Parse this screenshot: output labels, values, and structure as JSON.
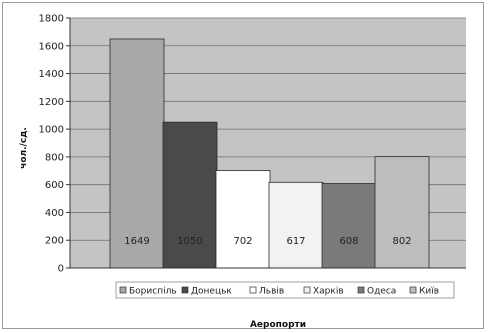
{
  "chart_data": {
    "type": "bar",
    "title": "",
    "xlabel": "Аеропорти",
    "ylabel": "чол./сд.",
    "ylim": [
      0,
      1800
    ],
    "yticks": [
      0,
      200,
      400,
      600,
      800,
      1000,
      1200,
      1400,
      1600,
      1800
    ],
    "grid": true,
    "legend_position": "bottom",
    "categories": [
      "Бориспіль",
      "Донецьк",
      "Львів",
      "Харків",
      "Одеса",
      "Київ"
    ],
    "values": [
      1649,
      1050,
      702,
      617,
      608,
      802
    ],
    "data_labels": [
      "1649",
      "1050",
      "702",
      "617",
      "608",
      "802"
    ],
    "colors": [
      "#a8a8a8",
      "#4a4a4a",
      "#ffffff",
      "#f2f2f2",
      "#7a7a7a",
      "#bdbdbd"
    ],
    "plot_background": "#c4c4c4"
  }
}
